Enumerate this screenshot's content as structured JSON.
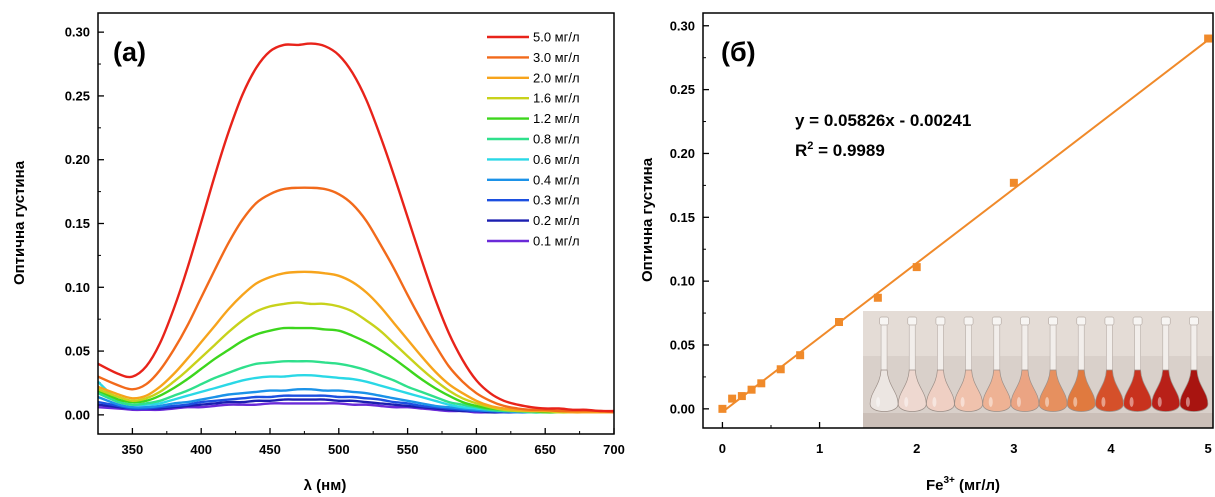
{
  "chart_data": [
    {
      "type": "line",
      "panel_label": "(a)",
      "xlabel": "λ (нм)",
      "ylabel": "Оптична густина",
      "xlim": [
        325,
        700
      ],
      "ylim": [
        -0.015,
        0.315
      ],
      "xticks": [
        350,
        400,
        450,
        500,
        550,
        600,
        650,
        700
      ],
      "yticks": [
        0.0,
        0.05,
        0.1,
        0.15,
        0.2,
        0.25,
        0.3
      ],
      "ytick_labels": [
        "0.00",
        "0.05",
        "0.10",
        "0.15",
        "0.20",
        "0.25",
        "0.30"
      ],
      "legend_position": "top-right",
      "x": [
        325,
        340,
        350,
        360,
        370,
        380,
        390,
        400,
        410,
        420,
        430,
        440,
        450,
        460,
        470,
        480,
        490,
        500,
        510,
        520,
        530,
        540,
        550,
        560,
        570,
        580,
        590,
        600,
        610,
        620,
        630,
        640,
        650,
        660,
        670,
        680,
        690,
        700
      ],
      "series": [
        {
          "name": "5.0 мг/л",
          "color": "#e8231a",
          "values": [
            0.04,
            0.032,
            0.03,
            0.038,
            0.056,
            0.083,
            0.115,
            0.151,
            0.188,
            0.222,
            0.251,
            0.272,
            0.285,
            0.29,
            0.29,
            0.291,
            0.289,
            0.282,
            0.268,
            0.247,
            0.219,
            0.188,
            0.155,
            0.122,
            0.091,
            0.064,
            0.043,
            0.027,
            0.017,
            0.011,
            0.008,
            0.006,
            0.005,
            0.005,
            0.004,
            0.004,
            0.003,
            0.003
          ]
        },
        {
          "name": "3.0 мг/л",
          "color": "#f26a1b",
          "values": [
            0.03,
            0.023,
            0.02,
            0.024,
            0.035,
            0.051,
            0.07,
            0.092,
            0.114,
            0.135,
            0.153,
            0.166,
            0.173,
            0.177,
            0.178,
            0.178,
            0.177,
            0.173,
            0.165,
            0.152,
            0.134,
            0.115,
            0.094,
            0.074,
            0.055,
            0.038,
            0.026,
            0.017,
            0.011,
            0.007,
            0.005,
            0.004,
            0.004,
            0.003,
            0.003,
            0.003,
            0.003,
            0.002
          ]
        },
        {
          "name": "2.0 мг/л",
          "color": "#f7a41c",
          "values": [
            0.022,
            0.016,
            0.013,
            0.015,
            0.022,
            0.032,
            0.044,
            0.057,
            0.07,
            0.083,
            0.094,
            0.103,
            0.108,
            0.111,
            0.112,
            0.112,
            0.111,
            0.109,
            0.104,
            0.096,
            0.085,
            0.072,
            0.059,
            0.046,
            0.034,
            0.024,
            0.017,
            0.011,
            0.007,
            0.005,
            0.004,
            0.003,
            0.003,
            0.003,
            0.002,
            0.002,
            0.002,
            0.002
          ]
        },
        {
          "name": "1.6 мг/л",
          "color": "#c8d21b",
          "values": [
            0.02,
            0.014,
            0.011,
            0.013,
            0.018,
            0.026,
            0.035,
            0.045,
            0.055,
            0.065,
            0.074,
            0.081,
            0.085,
            0.087,
            0.088,
            0.087,
            0.087,
            0.085,
            0.081,
            0.074,
            0.066,
            0.056,
            0.046,
            0.036,
            0.027,
            0.019,
            0.013,
            0.009,
            0.006,
            0.004,
            0.003,
            0.003,
            0.003,
            0.002,
            0.002,
            0.002,
            0.002,
            0.002
          ]
        },
        {
          "name": "1.2 мг/л",
          "color": "#3dd61d",
          "values": [
            0.019,
            0.012,
            0.01,
            0.011,
            0.015,
            0.021,
            0.028,
            0.036,
            0.044,
            0.051,
            0.058,
            0.063,
            0.066,
            0.068,
            0.068,
            0.068,
            0.067,
            0.066,
            0.062,
            0.057,
            0.051,
            0.044,
            0.036,
            0.028,
            0.021,
            0.015,
            0.01,
            0.007,
            0.005,
            0.004,
            0.003,
            0.003,
            0.002,
            0.002,
            0.002,
            0.002,
            0.002,
            0.002
          ]
        },
        {
          "name": "0.8 мг/л",
          "color": "#2fe08c",
          "values": [
            0.017,
            0.01,
            0.008,
            0.009,
            0.011,
            0.015,
            0.019,
            0.024,
            0.029,
            0.033,
            0.037,
            0.04,
            0.041,
            0.042,
            0.042,
            0.042,
            0.041,
            0.04,
            0.038,
            0.035,
            0.031,
            0.027,
            0.022,
            0.018,
            0.014,
            0.01,
            0.008,
            0.006,
            0.004,
            0.003,
            0.003,
            0.002,
            0.002,
            0.002,
            0.002,
            0.002,
            0.002,
            0.002
          ]
        },
        {
          "name": "0.6 мг/л",
          "color": "#2ad8e6",
          "values": [
            0.026,
            0.011,
            0.008,
            0.008,
            0.009,
            0.012,
            0.015,
            0.018,
            0.021,
            0.024,
            0.027,
            0.029,
            0.03,
            0.03,
            0.031,
            0.031,
            0.03,
            0.029,
            0.028,
            0.026,
            0.023,
            0.02,
            0.017,
            0.014,
            0.011,
            0.008,
            0.006,
            0.005,
            0.004,
            0.003,
            0.003,
            0.002,
            0.002,
            0.002,
            0.002,
            0.002,
            0.002,
            0.002
          ]
        },
        {
          "name": "0.4 мг/л",
          "color": "#1b92e8",
          "values": [
            0.014,
            0.008,
            0.006,
            0.006,
            0.007,
            0.009,
            0.01,
            0.012,
            0.014,
            0.016,
            0.017,
            0.018,
            0.019,
            0.019,
            0.02,
            0.02,
            0.019,
            0.019,
            0.018,
            0.017,
            0.015,
            0.013,
            0.011,
            0.009,
            0.007,
            0.006,
            0.005,
            0.004,
            0.003,
            0.003,
            0.002,
            0.002,
            0.002,
            0.002,
            0.002,
            0.002,
            0.002,
            0.002
          ]
        },
        {
          "name": "0.3 мг/л",
          "color": "#1c4fe0",
          "values": [
            0.01,
            0.007,
            0.005,
            0.005,
            0.006,
            0.007,
            0.008,
            0.01,
            0.011,
            0.012,
            0.013,
            0.014,
            0.014,
            0.015,
            0.015,
            0.015,
            0.015,
            0.014,
            0.014,
            0.013,
            0.012,
            0.01,
            0.009,
            0.007,
            0.006,
            0.005,
            0.004,
            0.003,
            0.003,
            0.002,
            0.002,
            0.002,
            0.002,
            0.002,
            0.002,
            0.002,
            0.002,
            0.002
          ]
        },
        {
          "name": "0.2 мг/л",
          "color": "#1b1fb0",
          "values": [
            0.008,
            0.006,
            0.005,
            0.005,
            0.005,
            0.006,
            0.007,
            0.008,
            0.009,
            0.01,
            0.01,
            0.011,
            0.011,
            0.012,
            0.012,
            0.012,
            0.012,
            0.011,
            0.011,
            0.01,
            0.009,
            0.008,
            0.007,
            0.006,
            0.005,
            0.004,
            0.003,
            0.003,
            0.002,
            0.002,
            0.002,
            0.002,
            0.002,
            0.002,
            0.002,
            0.002,
            0.002,
            0.002
          ]
        },
        {
          "name": "0.1 мг/л",
          "color": "#6a2ad8",
          "values": [
            0.006,
            0.005,
            0.004,
            0.004,
            0.004,
            0.005,
            0.006,
            0.006,
            0.007,
            0.008,
            0.008,
            0.008,
            0.009,
            0.009,
            0.009,
            0.009,
            0.009,
            0.009,
            0.008,
            0.008,
            0.007,
            0.006,
            0.006,
            0.005,
            0.004,
            0.003,
            0.003,
            0.002,
            0.002,
            0.002,
            0.002,
            0.002,
            0.002,
            0.002,
            0.002,
            0.002,
            0.002,
            0.002
          ]
        }
      ]
    },
    {
      "type": "scatter",
      "panel_label": "(б)",
      "xlabel": "Fe",
      "xlabel_superscript": "3+",
      "xlabel_suffix": " (мг/л)",
      "ylabel": "Оптична густина",
      "xlim": [
        -0.2,
        5.05
      ],
      "ylim": [
        -0.015,
        0.31
      ],
      "xticks": [
        0,
        1,
        2,
        3,
        4,
        5
      ],
      "yticks": [
        0.0,
        0.05,
        0.1,
        0.15,
        0.2,
        0.25,
        0.3
      ],
      "ytick_labels": [
        "0.00",
        "0.05",
        "0.10",
        "0.15",
        "0.20",
        "0.25",
        "0.30"
      ],
      "marker_color": "#f08a2a",
      "line_color": "#f08a2a",
      "series": [
        {
          "x": [
            0,
            0.1,
            0.2,
            0.3,
            0.4,
            0.6,
            0.8,
            1.2,
            1.6,
            2.0,
            3.0,
            5.0
          ],
          "values": [
            0.0,
            0.008,
            0.01,
            0.015,
            0.02,
            0.031,
            0.042,
            0.068,
            0.087,
            0.111,
            0.177,
            0.29
          ]
        }
      ],
      "fit": {
        "slope": 0.05826,
        "intercept": -0.00241,
        "equation": "y = 0.05826x - 0.00241",
        "r2_prefix": "R",
        "r2_sup": "2",
        "r2_value": " = 0.9989"
      },
      "inset": {
        "description_icon": "volumetric-flasks-photo",
        "flask_count": 12,
        "flask_colors": [
          "#ece6e2",
          "#eed8d0",
          "#efcfc3",
          "#f0c2ad",
          "#eeb294",
          "#eba483",
          "#e6905f",
          "#e07a3f",
          "#d5502a",
          "#c8321e",
          "#b82018",
          "#a81410"
        ]
      }
    }
  ]
}
